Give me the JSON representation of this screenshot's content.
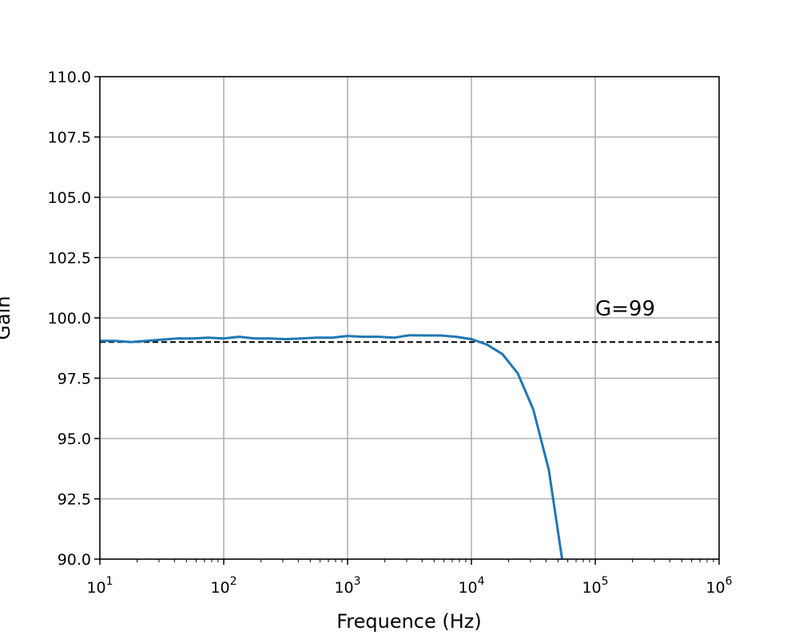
{
  "chart_data": {
    "type": "line",
    "title": "",
    "xlabel": "Frequence (Hz)",
    "ylabel": "Gain",
    "xscale": "log",
    "xlim": [
      10,
      1000000
    ],
    "ylim": [
      90,
      110
    ],
    "grid": true,
    "x_tick_labels": [
      {
        "base": "10",
        "exp": "1",
        "value": 10
      },
      {
        "base": "10",
        "exp": "2",
        "value": 100
      },
      {
        "base": "10",
        "exp": "3",
        "value": 1000
      },
      {
        "base": "10",
        "exp": "4",
        "value": 10000
      },
      {
        "base": "10",
        "exp": "5",
        "value": 100000
      },
      {
        "base": "10",
        "exp": "6",
        "value": 1000000
      }
    ],
    "y_tick_labels": [
      "90.0",
      "92.5",
      "95.0",
      "97.5",
      "100.0",
      "102.5",
      "105.0",
      "107.5",
      "110.0"
    ],
    "series": [
      {
        "color": "#1f77b4",
        "x": [
          10,
          13.3,
          17.8,
          23.7,
          31.6,
          42.2,
          56.2,
          75,
          100,
          133,
          178,
          237,
          316,
          422,
          562,
          750,
          1000,
          1330,
          1780,
          2370,
          3160,
          4220,
          5620,
          7500,
          10000,
          13300,
          17800,
          23700,
          31600,
          42200,
          54000
        ],
        "y": [
          99.05,
          99.05,
          99.0,
          99.05,
          99.1,
          99.15,
          99.15,
          99.18,
          99.15,
          99.22,
          99.15,
          99.15,
          99.12,
          99.15,
          99.18,
          99.18,
          99.25,
          99.22,
          99.22,
          99.18,
          99.28,
          99.27,
          99.27,
          99.22,
          99.12,
          98.9,
          98.5,
          97.7,
          96.2,
          93.7,
          90.0
        ]
      }
    ],
    "reference_line": {
      "y": 99,
      "style": "dashed",
      "color": "#000000"
    },
    "annotation": {
      "text": "G=99",
      "x": 100000,
      "y": 100.1
    }
  }
}
